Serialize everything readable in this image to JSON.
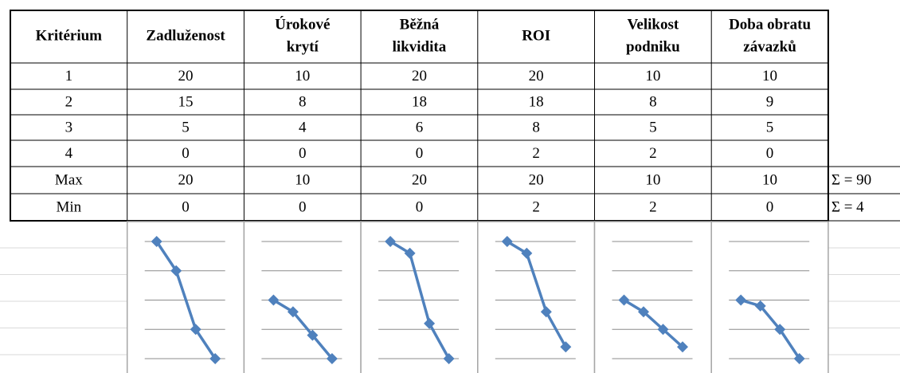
{
  "table": {
    "header": [
      "Kritérium",
      "Zadluženost",
      [
        "Úrokové",
        "krytí"
      ],
      [
        "Běžná",
        "likvidita"
      ],
      "ROI",
      [
        "Velikost",
        "podniku"
      ],
      [
        "Doba obratu",
        "závazků"
      ]
    ],
    "rows": [
      [
        "1",
        20,
        10,
        20,
        20,
        10,
        10
      ],
      [
        "2",
        15,
        8,
        18,
        18,
        8,
        9
      ],
      [
        "3",
        5,
        4,
        6,
        8,
        5,
        5
      ],
      [
        "4",
        0,
        0,
        0,
        2,
        2,
        0
      ],
      [
        "Max",
        20,
        10,
        20,
        20,
        10,
        10
      ],
      [
        "Min",
        0,
        0,
        0,
        2,
        2,
        0
      ]
    ],
    "sums": {
      "4": "Σ = 90",
      "5": "Σ = 4"
    }
  },
  "sparklines": {
    "type": "line",
    "color": "#4f81bd",
    "rows": 4,
    "ylim": [
      0,
      20
    ],
    "yticks": [
      0,
      5,
      10,
      15,
      20
    ]
  }
}
